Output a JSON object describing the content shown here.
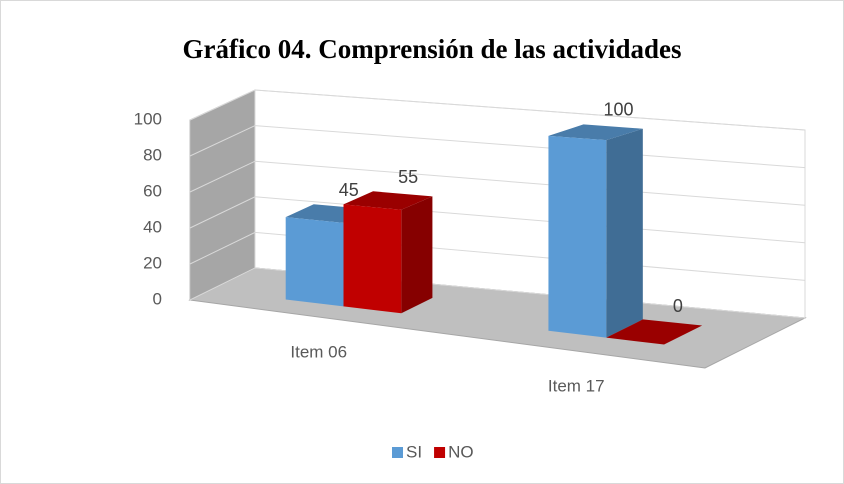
{
  "chart_data": {
    "type": "bar3d",
    "title": "Gráfico 04. Comprensión de las actividades",
    "categories": [
      "Item 06",
      "Item 17"
    ],
    "series": [
      {
        "name": "SI",
        "color": "#5b9bd5",
        "values": [
          45,
          100
        ]
      },
      {
        "name": "NO",
        "color": "#c00000",
        "values": [
          55,
          0
        ]
      }
    ],
    "ylim": [
      0,
      100
    ],
    "yticks": [
      0,
      20,
      40,
      60,
      80,
      100
    ],
    "grid": true,
    "legend": "bottom"
  }
}
